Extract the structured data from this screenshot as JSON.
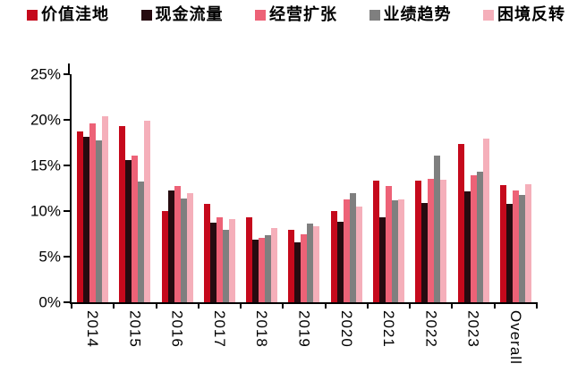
{
  "chart_data": {
    "type": "bar",
    "title": "",
    "categories": [
      "2014",
      "2015",
      "2016",
      "2017",
      "2018",
      "2019",
      "2020",
      "2021",
      "2022",
      "2023",
      "Overall"
    ],
    "series": [
      {
        "name": "价值洼地",
        "color": "#C5091C",
        "values": [
          18.7,
          19.3,
          10.0,
          10.8,
          9.3,
          7.9,
          10.0,
          13.3,
          13.3,
          17.4,
          12.8
        ]
      },
      {
        "name": "现金流量",
        "color": "#260B10",
        "values": [
          18.1,
          15.6,
          12.3,
          8.7,
          6.9,
          6.6,
          8.8,
          9.3,
          10.9,
          12.2,
          10.8
        ]
      },
      {
        "name": "经营扩张",
        "color": "#ED6277",
        "values": [
          19.6,
          16.1,
          12.7,
          9.3,
          7.1,
          7.5,
          11.3,
          12.7,
          13.5,
          13.9,
          12.3
        ]
      },
      {
        "name": "业绩趋势",
        "color": "#7F7F7F",
        "values": [
          17.7,
          13.2,
          11.4,
          7.9,
          7.4,
          8.6,
          12.0,
          11.2,
          16.1,
          14.3,
          11.8
        ]
      },
      {
        "name": "困境反转",
        "color": "#F5AFBA",
        "values": [
          20.4,
          19.9,
          12.0,
          9.1,
          8.1,
          8.3,
          10.5,
          11.3,
          13.4,
          17.9,
          12.9
        ]
      }
    ],
    "ylim": [
      0,
      25
    ],
    "ytick_values": [
      25,
      20,
      15,
      10,
      5,
      0
    ],
    "ytick_labels": [
      "25%",
      "20%",
      "15%",
      "10%",
      "5%",
      "0%"
    ],
    "xlabel": "",
    "ylabel": "",
    "legend_position": "top",
    "grid": false,
    "axis_color": "#000000",
    "text_color": "#000000"
  }
}
